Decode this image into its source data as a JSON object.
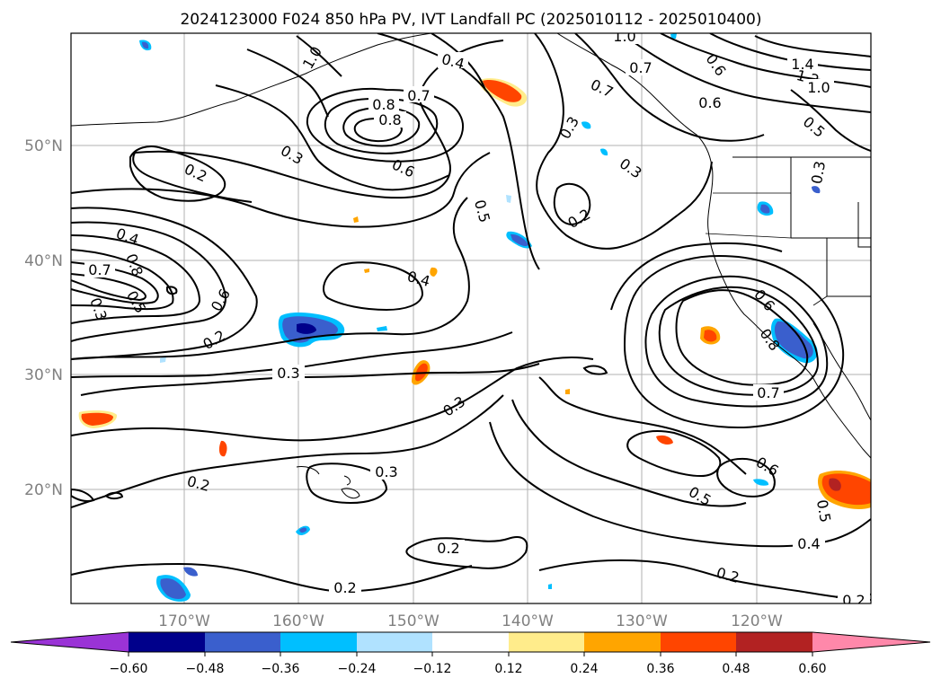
{
  "title": "2024123000 F024 850 hPa PV, IVT Landfall PC (2025010112 - 2025010400)",
  "lat_ticks": [
    "50°N",
    "40°N",
    "30°N",
    "20°N"
  ],
  "lon_ticks": [
    "170°W",
    "160°W",
    "150°W",
    "140°W",
    "130°W",
    "120°W"
  ],
  "colorbar": {
    "ticks": [
      "−0.60",
      "−0.48",
      "−0.36",
      "−0.24",
      "−0.12",
      "0.12",
      "0.24",
      "0.36",
      "0.48",
      "0.60"
    ],
    "colors": [
      "#9a33d6",
      "#00008b",
      "#3a5fcd",
      "#00bfff",
      "#b0e2ff",
      "#ffffff",
      "#ffec8b",
      "#ffa500",
      "#ff4500",
      "#b22222",
      "#ff88aa"
    ]
  },
  "contour_labels": [
    "1.0",
    "0.4",
    "0.7",
    "0.8",
    "0.6",
    "0.8",
    "1.0",
    "0.7",
    "1.4",
    "1.2",
    "1.0",
    "0.7",
    "0.6",
    "0.5",
    "0.3",
    "0.3",
    "0.2",
    "0.3",
    "0.6",
    "0.5",
    "0.2",
    "0.3",
    "0.4",
    "0.8",
    "0.7",
    "0.3",
    "0.5",
    "0.6",
    "0.2",
    "0.4",
    "0.6",
    "0.8",
    "0.7",
    "0.3",
    "0.3",
    "0.2",
    "0.3",
    "0.6",
    "0.5",
    "0.5",
    "0.4",
    "0.2",
    "0.2",
    "0.2",
    "0.2"
  ],
  "legend": {
    "type": "filled_contour_with_line_contours",
    "fill_variable": "IVT Landfall PC",
    "line_variable": "850 hPa PV"
  }
}
